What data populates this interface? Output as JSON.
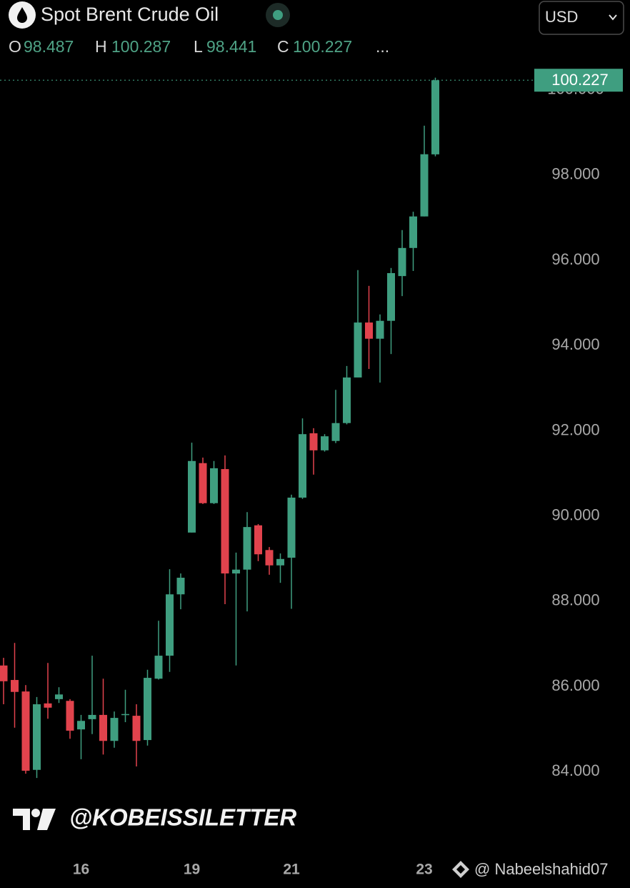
{
  "header": {
    "currency": "USD",
    "more": "..."
  },
  "watermarks": {
    "brand": "@KOBEISSILETTER",
    "author": "@ Nabeelshahid07"
  },
  "chart_data": {
    "type": "candlestick",
    "title": "Spot Brent Crude Oil",
    "ohlc_labels": [
      "O",
      "H",
      "L",
      "C"
    ],
    "last_price": 100.227,
    "up_color": "#3f9e80",
    "down_color": "#e2434d",
    "categories": [
      null,
      null,
      null,
      null,
      null,
      null,
      null,
      "16",
      null,
      null,
      null,
      null,
      null,
      null,
      null,
      null,
      null,
      "19",
      null,
      null,
      null,
      null,
      null,
      null,
      null,
      null,
      "21",
      null,
      null,
      null,
      null,
      null,
      null,
      null,
      null,
      null,
      null,
      null,
      "23",
      null
    ],
    "open": [
      86.49,
      86.15,
      85.88,
      84.04,
      85.6,
      85.7,
      85.66,
      84.99,
      85.23,
      85.33,
      84.72,
      85.33,
      85.31,
      84.74,
      86.18,
      86.72,
      88.16,
      89.61,
      91.24,
      90.3,
      91.1,
      88.65,
      88.74,
      89.78,
      89.2,
      88.84,
      89.02,
      90.43,
      91.94,
      91.54,
      91.76,
      92.18,
      93.25,
      94.54,
      94.16,
      94.58,
      95.63,
      96.29,
      97.03,
      98.487
    ],
    "high": [
      86.67,
      87.02,
      86.03,
      85.75,
      86.55,
      85.98,
      85.7,
      85.33,
      86.72,
      86.18,
      85.41,
      85.92,
      85.58,
      86.39,
      87.54,
      88.75,
      88.65,
      91.72,
      91.37,
      91.29,
      91.42,
      89.14,
      90.09,
      89.81,
      89.27,
      89.12,
      90.5,
      92.29,
      92.06,
      91.92,
      92.96,
      93.52,
      95.77,
      95.4,
      94.73,
      95.82,
      96.71,
      97.14,
      99.16,
      100.287
    ],
    "low": [
      85.58,
      85.03,
      83.95,
      83.85,
      85.24,
      85.61,
      84.77,
      84.29,
      84.88,
      84.4,
      84.56,
      85.16,
      84.12,
      84.61,
      86.16,
      86.34,
      87.81,
      89.61,
      90.28,
      90.28,
      87.93,
      86.49,
      87.76,
      88.94,
      88.62,
      88.43,
      87.82,
      90.4,
      90.97,
      91.51,
      91.71,
      92.15,
      93.25,
      93.45,
      93.13,
      93.8,
      95.16,
      95.75,
      97.03,
      98.441
    ],
    "close": [
      86.12,
      85.87,
      84.02,
      85.58,
      85.5,
      85.81,
      84.96,
      85.19,
      85.33,
      84.72,
      85.26,
      85.35,
      84.72,
      86.2,
      86.72,
      88.16,
      88.55,
      91.29,
      90.3,
      91.12,
      88.65,
      88.74,
      89.74,
      89.1,
      88.84,
      88.99,
      90.43,
      91.92,
      91.54,
      91.87,
      92.18,
      93.25,
      94.54,
      94.16,
      94.58,
      95.7,
      96.29,
      97.03,
      98.49,
      100.227
    ],
    "ylim": [
      82.14,
      102.11
    ],
    "yticks": [
      {
        "value": 84,
        "label": "84.000"
      },
      {
        "value": 86,
        "label": "86.000"
      },
      {
        "value": 88,
        "label": "88.000"
      },
      {
        "value": 90,
        "label": "90.000"
      },
      {
        "value": 92,
        "label": "92.000"
      },
      {
        "value": 94,
        "label": "94.000"
      },
      {
        "value": 96,
        "label": "96.000"
      },
      {
        "value": 98,
        "label": "98.000"
      },
      {
        "value": 100,
        "label": "100.000"
      }
    ],
    "grid": false
  }
}
